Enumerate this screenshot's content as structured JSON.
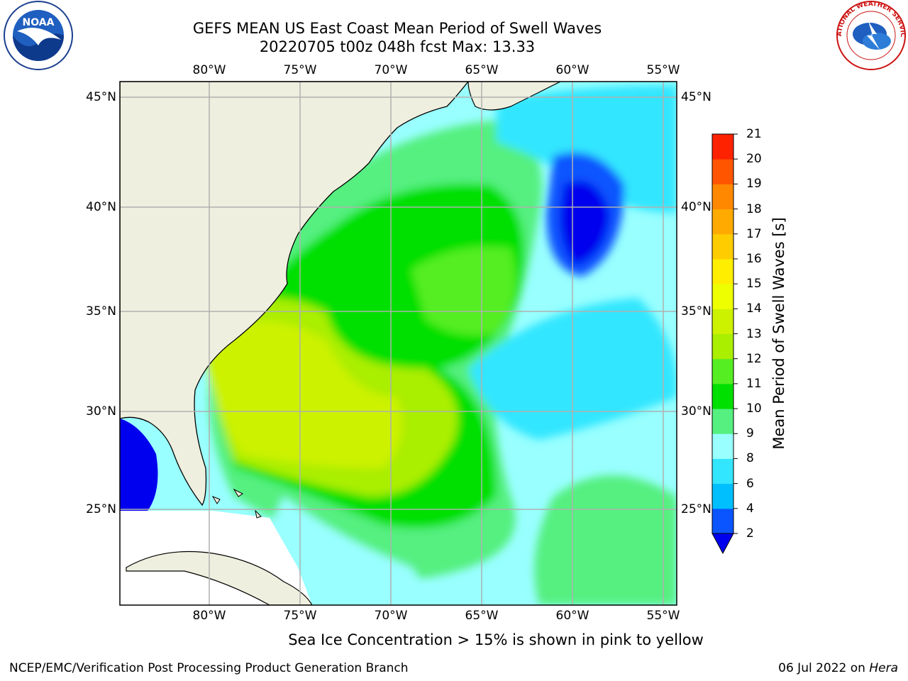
{
  "title": {
    "line1": "GEFS MEAN US East Coast Mean Period of Swell Waves",
    "line2": "20220705 t00z 048h fcst   Max: 13.33"
  },
  "map": {
    "lon_labels": [
      "80°W",
      "75°W",
      "70°W",
      "65°W",
      "60°W",
      "55°W"
    ],
    "lat_labels": [
      "45°N",
      "40°N",
      "35°N",
      "30°N",
      "25°N"
    ],
    "land_color": "#efefdf",
    "grid_color": "#b0b0b0"
  },
  "colorbar": {
    "label": "Mean Period of Swell Waves [s]",
    "ticks": [
      "2",
      "4",
      "6",
      "8",
      "9",
      "10",
      "11",
      "12",
      "13",
      "14",
      "15",
      "16",
      "17",
      "18",
      "19",
      "20",
      "21"
    ],
    "colors": [
      "#0a55ff",
      "#00bfff",
      "#33e6ff",
      "#99ffff",
      "#55f080",
      "#00e000",
      "#55ee22",
      "#aaee00",
      "#ccf200",
      "#eeff00",
      "#ffee00",
      "#ffcc00",
      "#ffaa00",
      "#ff8800",
      "#ff5500",
      "#ff2200"
    ],
    "under_color": "#0000ee"
  },
  "logos": {
    "left_text": "NOAA",
    "right_text": "NATIONAL WEATHER SERVICE"
  },
  "note": "Sea Ice Concentration > 15% is shown in pink to yellow",
  "footer": {
    "left": "NCEP/EMC/Verification Post Processing Product Generation Branch",
    "date": "06 Jul 2022 on ",
    "machine": "Hera"
  }
}
